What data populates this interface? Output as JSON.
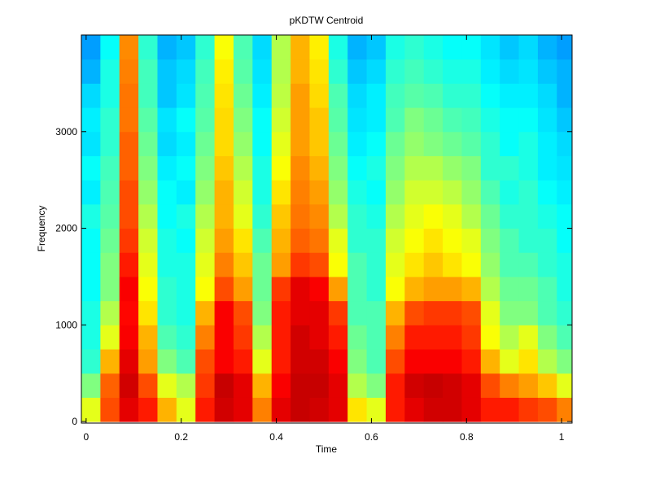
{
  "chart_data": {
    "type": "heatmap",
    "title": "pKDTW Centroid",
    "xlabel": "Time",
    "ylabel": "Frequency",
    "colormap": "jet",
    "clim": [
      0,
      1
    ],
    "xlim": [
      -0.01,
      1.022
    ],
    "ylim": [
      -16,
      4000
    ],
    "xticks": [
      0,
      0.2,
      0.4,
      0.6,
      0.8,
      1
    ],
    "yticks": [
      0,
      1000,
      2000,
      3000
    ],
    "x": [
      0.01,
      0.05,
      0.09,
      0.13,
      0.17,
      0.21,
      0.25,
      0.29,
      0.33,
      0.37,
      0.41,
      0.45,
      0.49,
      0.53,
      0.57,
      0.61,
      0.65,
      0.69,
      0.73,
      0.77,
      0.81,
      0.85,
      0.89,
      0.93,
      0.97,
      1.01
    ],
    "y": [
      125,
      375,
      625,
      875,
      1125,
      1375,
      1625,
      1875,
      2125,
      2375,
      2625,
      2875,
      3125,
      3375,
      3625,
      3875
    ],
    "z": [
      [
        0.6,
        0.8,
        0.9,
        0.85,
        0.7,
        0.6,
        0.85,
        0.92,
        0.9,
        0.75,
        0.9,
        0.93,
        0.92,
        0.9,
        0.65,
        0.6,
        0.85,
        0.9,
        0.92,
        0.92,
        0.9,
        0.85,
        0.85,
        0.82,
        0.8,
        0.75
      ],
      [
        0.5,
        0.78,
        0.92,
        0.8,
        0.6,
        0.55,
        0.82,
        0.93,
        0.9,
        0.7,
        0.88,
        0.93,
        0.93,
        0.9,
        0.55,
        0.5,
        0.85,
        0.92,
        0.93,
        0.92,
        0.9,
        0.8,
        0.75,
        0.72,
        0.68,
        0.6
      ],
      [
        0.42,
        0.7,
        0.9,
        0.72,
        0.5,
        0.45,
        0.8,
        0.88,
        0.85,
        0.6,
        0.85,
        0.92,
        0.92,
        0.88,
        0.5,
        0.45,
        0.8,
        0.88,
        0.88,
        0.88,
        0.85,
        0.7,
        0.6,
        0.65,
        0.55,
        0.5
      ],
      [
        0.4,
        0.6,
        0.88,
        0.7,
        0.45,
        0.42,
        0.75,
        0.88,
        0.82,
        0.55,
        0.85,
        0.92,
        0.9,
        0.85,
        0.48,
        0.45,
        0.75,
        0.85,
        0.85,
        0.85,
        0.82,
        0.62,
        0.55,
        0.6,
        0.5,
        0.45
      ],
      [
        0.4,
        0.55,
        0.87,
        0.65,
        0.42,
        0.4,
        0.7,
        0.88,
        0.8,
        0.5,
        0.85,
        0.9,
        0.9,
        0.82,
        0.45,
        0.45,
        0.7,
        0.8,
        0.82,
        0.82,
        0.8,
        0.6,
        0.5,
        0.5,
        0.45,
        0.42
      ],
      [
        0.38,
        0.5,
        0.88,
        0.62,
        0.42,
        0.4,
        0.62,
        0.8,
        0.72,
        0.48,
        0.82,
        0.9,
        0.88,
        0.72,
        0.45,
        0.42,
        0.62,
        0.7,
        0.72,
        0.72,
        0.7,
        0.55,
        0.48,
        0.48,
        0.45,
        0.4
      ],
      [
        0.38,
        0.5,
        0.85,
        0.6,
        0.4,
        0.4,
        0.6,
        0.75,
        0.68,
        0.48,
        0.72,
        0.82,
        0.8,
        0.62,
        0.45,
        0.42,
        0.6,
        0.65,
        0.68,
        0.65,
        0.62,
        0.52,
        0.45,
        0.45,
        0.42,
        0.4
      ],
      [
        0.38,
        0.48,
        0.82,
        0.58,
        0.4,
        0.38,
        0.58,
        0.72,
        0.65,
        0.45,
        0.7,
        0.78,
        0.76,
        0.6,
        0.42,
        0.42,
        0.58,
        0.62,
        0.65,
        0.62,
        0.6,
        0.5,
        0.45,
        0.42,
        0.42,
        0.38
      ],
      [
        0.4,
        0.46,
        0.8,
        0.55,
        0.38,
        0.4,
        0.55,
        0.7,
        0.6,
        0.42,
        0.68,
        0.76,
        0.74,
        0.55,
        0.42,
        0.4,
        0.55,
        0.6,
        0.62,
        0.6,
        0.55,
        0.48,
        0.42,
        0.42,
        0.4,
        0.38
      ],
      [
        0.36,
        0.45,
        0.8,
        0.52,
        0.38,
        0.36,
        0.52,
        0.7,
        0.58,
        0.4,
        0.65,
        0.75,
        0.72,
        0.52,
        0.4,
        0.38,
        0.52,
        0.58,
        0.58,
        0.56,
        0.52,
        0.45,
        0.4,
        0.42,
        0.38,
        0.36
      ],
      [
        0.38,
        0.44,
        0.78,
        0.5,
        0.36,
        0.38,
        0.5,
        0.68,
        0.55,
        0.4,
        0.62,
        0.74,
        0.7,
        0.5,
        0.38,
        0.4,
        0.5,
        0.55,
        0.55,
        0.52,
        0.5,
        0.42,
        0.42,
        0.4,
        0.36,
        0.35
      ],
      [
        0.35,
        0.42,
        0.78,
        0.48,
        0.34,
        0.36,
        0.48,
        0.66,
        0.52,
        0.38,
        0.6,
        0.72,
        0.68,
        0.48,
        0.36,
        0.38,
        0.48,
        0.52,
        0.5,
        0.48,
        0.46,
        0.42,
        0.38,
        0.4,
        0.36,
        0.34
      ],
      [
        0.36,
        0.42,
        0.76,
        0.46,
        0.35,
        0.38,
        0.46,
        0.66,
        0.5,
        0.38,
        0.58,
        0.72,
        0.68,
        0.46,
        0.35,
        0.36,
        0.45,
        0.5,
        0.48,
        0.45,
        0.44,
        0.4,
        0.38,
        0.38,
        0.35,
        0.32
      ],
      [
        0.34,
        0.4,
        0.76,
        0.44,
        0.32,
        0.35,
        0.45,
        0.65,
        0.48,
        0.36,
        0.56,
        0.72,
        0.66,
        0.45,
        0.34,
        0.36,
        0.44,
        0.46,
        0.45,
        0.42,
        0.42,
        0.38,
        0.36,
        0.36,
        0.34,
        0.3
      ],
      [
        0.3,
        0.4,
        0.75,
        0.44,
        0.32,
        0.34,
        0.44,
        0.64,
        0.46,
        0.35,
        0.55,
        0.7,
        0.65,
        0.42,
        0.32,
        0.34,
        0.42,
        0.44,
        0.42,
        0.4,
        0.4,
        0.36,
        0.34,
        0.35,
        0.32,
        0.3
      ],
      [
        0.28,
        0.38,
        0.74,
        0.42,
        0.3,
        0.32,
        0.42,
        0.62,
        0.45,
        0.34,
        0.55,
        0.7,
        0.64,
        0.4,
        0.3,
        0.32,
        0.4,
        0.42,
        0.4,
        0.38,
        0.38,
        0.35,
        0.32,
        0.34,
        0.3,
        0.28
      ]
    ]
  }
}
